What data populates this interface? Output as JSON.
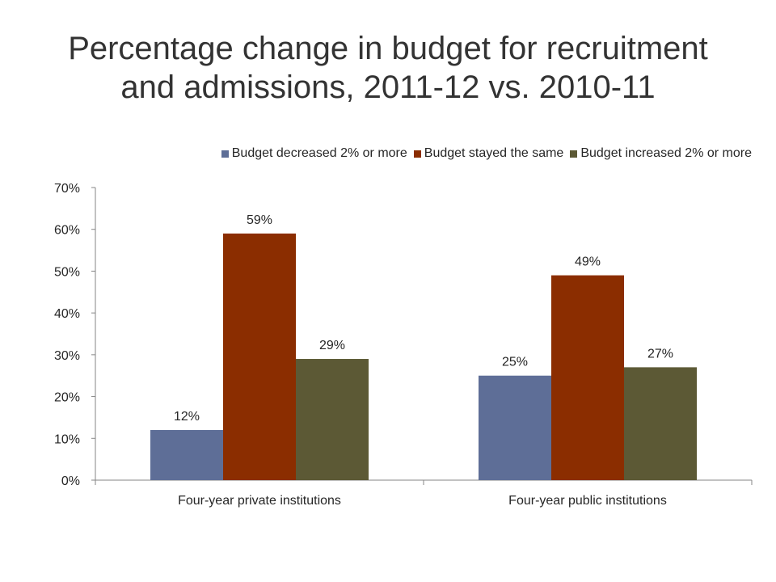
{
  "colors": {
    "series": [
      "#5E6E97",
      "#8B2D00",
      "#5C5935"
    ],
    "axis": "#868686",
    "text": "#262626"
  },
  "chart_data": {
    "type": "bar",
    "title": "Percentage change in budget for recruitment and admissions, 2011-12 vs. 2010-11",
    "title_lines": [
      "Percentage change in budget for recruitment",
      "and admissions, 2011-12 vs. 2010-11"
    ],
    "categories": [
      "Four-year private institutions",
      "Four-year public institutions"
    ],
    "series": [
      {
        "name": "Budget decreased 2% or more",
        "values": [
          12,
          25
        ]
      },
      {
        "name": "Budget stayed the same",
        "values": [
          59,
          49
        ]
      },
      {
        "name": "Budget increased 2% or more",
        "values": [
          29,
          27
        ]
      }
    ],
    "data_labels": [
      [
        "12%",
        "25%"
      ],
      [
        "59%",
        "49%"
      ],
      [
        "29%",
        "27%"
      ]
    ],
    "ylim": [
      0,
      70
    ],
    "yticks": [
      0,
      10,
      20,
      30,
      40,
      50,
      60,
      70
    ],
    "ytick_labels": [
      "0%",
      "10%",
      "20%",
      "30%",
      "40%",
      "50%",
      "60%",
      "70%"
    ],
    "xlabel": "",
    "ylabel": "",
    "grid": false,
    "legend_position": "top"
  }
}
